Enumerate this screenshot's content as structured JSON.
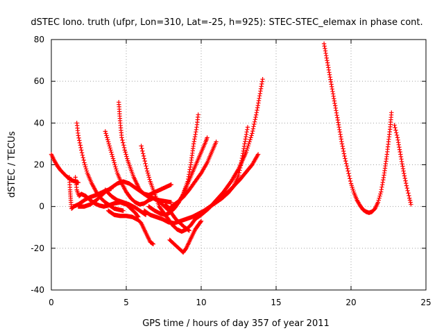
{
  "chart_data": {
    "type": "scatter",
    "title": "dSTEC Iono. truth (ufpr, Lon=310, Lat=-25, h=925): STEC-STEC_elemax in phase cont.",
    "xlabel": "GPS time / hours of day 357 of year 2011",
    "ylabel": "dSTEC  / TECUs",
    "xlim": [
      0,
      25
    ],
    "ylim": [
      -40,
      80
    ],
    "xticks": [
      0,
      5,
      10,
      15,
      20,
      25
    ],
    "yticks": [
      -40,
      -20,
      0,
      20,
      40,
      60,
      80
    ],
    "x_tick_labels": [
      "0",
      "5",
      "10",
      "15",
      "20",
      "25"
    ],
    "y_tick_labels": [
      "-40",
      "-20",
      "0",
      "20",
      "40",
      "60",
      "80"
    ],
    "grid": true,
    "legend": "none",
    "marker": "+",
    "color": "#ff0000",
    "series": [
      {
        "points": [
          [
            0.0,
            25
          ],
          [
            0.2,
            22
          ],
          [
            0.4,
            19.5
          ],
          [
            0.6,
            17.5
          ],
          [
            0.8,
            16
          ],
          [
            1.0,
            14.5
          ],
          [
            1.2,
            13.5
          ],
          [
            1.4,
            12.5
          ],
          [
            1.6,
            12
          ],
          [
            1.8,
            11.5
          ]
        ]
      },
      {
        "points": [
          [
            1.2,
            14
          ],
          [
            1.25,
            8
          ],
          [
            1.3,
            3
          ],
          [
            1.35,
            -1
          ],
          [
            1.5,
            0
          ],
          [
            1.8,
            1
          ],
          [
            2.0,
            2
          ],
          [
            2.3,
            3.5
          ],
          [
            2.6,
            4.5
          ],
          [
            3.0,
            5.5
          ],
          [
            3.3,
            6.5
          ],
          [
            3.6,
            7.5
          ],
          [
            4.0,
            8.5
          ]
        ]
      },
      {
        "points": [
          [
            1.6,
            14
          ],
          [
            1.7,
            8
          ],
          [
            1.85,
            5
          ],
          [
            2.0,
            6
          ],
          [
            2.3,
            5
          ],
          [
            2.6,
            3
          ],
          [
            2.9,
            1.5
          ],
          [
            3.2,
            0.5
          ],
          [
            3.5,
            0
          ],
          [
            3.8,
            0.5
          ],
          [
            4.2,
            1.5
          ],
          [
            4.6,
            2
          ],
          [
            5.0,
            1
          ],
          [
            5.3,
            -1
          ],
          [
            5.6,
            -3
          ],
          [
            5.8,
            -5
          ]
        ]
      },
      {
        "points": [
          [
            1.7,
            40
          ],
          [
            1.8,
            34
          ],
          [
            2.0,
            27
          ],
          [
            2.2,
            21
          ],
          [
            2.4,
            16
          ],
          [
            2.7,
            11
          ],
          [
            3.0,
            7
          ],
          [
            3.3,
            4
          ],
          [
            3.6,
            2
          ],
          [
            3.9,
            0.5
          ],
          [
            4.2,
            -1
          ],
          [
            4.5,
            -1.5
          ],
          [
            4.8,
            -2
          ]
        ]
      },
      {
        "points": [
          [
            1.8,
            0
          ],
          [
            2.2,
            0
          ],
          [
            2.6,
            1
          ],
          [
            3.0,
            3
          ],
          [
            3.3,
            5
          ],
          [
            3.6,
            7
          ],
          [
            4.0,
            9
          ],
          [
            4.4,
            11
          ],
          [
            4.8,
            12
          ],
          [
            5.2,
            11
          ],
          [
            5.6,
            9
          ],
          [
            6.0,
            7
          ],
          [
            6.4,
            5
          ],
          [
            6.8,
            4
          ],
          [
            7.2,
            3
          ],
          [
            7.6,
            2.5
          ],
          [
            8.0,
            2
          ]
        ]
      },
      {
        "points": [
          [
            3.6,
            8
          ],
          [
            4.0,
            5
          ],
          [
            4.4,
            3
          ],
          [
            4.8,
            2
          ],
          [
            5.2,
            1
          ],
          [
            5.6,
            -0.5
          ],
          [
            6.0,
            -2.5
          ],
          [
            6.3,
            -4
          ]
        ]
      },
      {
        "points": [
          [
            3.6,
            36
          ],
          [
            3.8,
            31
          ],
          [
            4.0,
            26
          ],
          [
            4.2,
            21
          ],
          [
            4.4,
            16
          ],
          [
            4.7,
            11
          ],
          [
            5.0,
            7
          ],
          [
            5.3,
            4
          ],
          [
            5.6,
            2
          ],
          [
            5.9,
            1
          ],
          [
            6.2,
            1.5
          ],
          [
            6.5,
            3
          ],
          [
            6.8,
            4
          ],
          [
            7.1,
            3
          ],
          [
            7.4,
            1
          ],
          [
            7.7,
            -1
          ],
          [
            8.0,
            -3
          ],
          [
            8.3,
            -6
          ],
          [
            8.6,
            -8
          ],
          [
            8.9,
            -10
          ],
          [
            9.2,
            -11.5
          ]
        ]
      },
      {
        "points": [
          [
            4.5,
            50
          ],
          [
            4.6,
            40
          ],
          [
            4.7,
            33
          ],
          [
            4.9,
            27
          ],
          [
            5.1,
            22
          ],
          [
            5.3,
            18
          ],
          [
            5.5,
            14
          ],
          [
            5.7,
            11
          ],
          [
            5.9,
            8
          ],
          [
            6.2,
            6
          ],
          [
            6.5,
            5.5
          ],
          [
            6.8,
            6.5
          ],
          [
            7.1,
            7.5
          ],
          [
            7.4,
            8.5
          ],
          [
            7.7,
            9.5
          ],
          [
            8.0,
            10.5
          ]
        ]
      },
      {
        "points": [
          [
            3.8,
            -2
          ],
          [
            4.2,
            -4
          ],
          [
            4.6,
            -4.5
          ],
          [
            5.0,
            -4.5
          ],
          [
            5.4,
            -5
          ],
          [
            5.8,
            -6.5
          ],
          [
            6.0,
            -8
          ],
          [
            6.2,
            -11
          ],
          [
            6.4,
            -14
          ],
          [
            6.6,
            -17
          ],
          [
            6.8,
            -18
          ]
        ]
      },
      {
        "points": [
          [
            6.0,
            29
          ],
          [
            6.2,
            23
          ],
          [
            6.4,
            17
          ],
          [
            6.6,
            12
          ],
          [
            6.8,
            8
          ],
          [
            7.0,
            4
          ],
          [
            7.2,
            0
          ],
          [
            7.5,
            -3
          ],
          [
            7.8,
            -6
          ],
          [
            8.1,
            -9
          ],
          [
            8.4,
            -11
          ],
          [
            8.7,
            -12
          ],
          [
            9.0,
            -11
          ],
          [
            9.3,
            -9
          ],
          [
            9.6,
            -6
          ],
          [
            9.8,
            -4
          ]
        ]
      },
      {
        "points": [
          [
            7.9,
            -16
          ],
          [
            8.2,
            -18
          ],
          [
            8.5,
            -20
          ],
          [
            8.8,
            -22
          ],
          [
            9.0,
            -20
          ],
          [
            9.2,
            -17
          ],
          [
            9.4,
            -14
          ],
          [
            9.6,
            -11
          ],
          [
            9.8,
            -9
          ],
          [
            10.0,
            -7
          ]
        ]
      },
      {
        "points": [
          [
            6.2,
            -2
          ],
          [
            6.6,
            -4
          ],
          [
            7.0,
            -5
          ],
          [
            7.4,
            -6
          ],
          [
            7.8,
            -7.5
          ],
          [
            8.2,
            -8
          ],
          [
            8.6,
            -7
          ],
          [
            9.0,
            -6
          ],
          [
            9.4,
            -5
          ],
          [
            9.8,
            -3.5
          ],
          [
            10.2,
            -2
          ],
          [
            10.6,
            0
          ],
          [
            11.0,
            2
          ],
          [
            11.4,
            4
          ],
          [
            11.8,
            7
          ],
          [
            12.2,
            10
          ],
          [
            12.6,
            13
          ],
          [
            13.0,
            16.5
          ],
          [
            13.4,
            20
          ],
          [
            13.8,
            25
          ]
        ]
      },
      {
        "points": [
          [
            6.5,
            0
          ],
          [
            6.9,
            -2
          ],
          [
            7.3,
            -3.5
          ],
          [
            7.6,
            -4
          ],
          [
            7.9,
            -3
          ],
          [
            8.2,
            -1
          ],
          [
            8.5,
            2
          ],
          [
            8.8,
            6
          ],
          [
            9.1,
            12
          ],
          [
            9.3,
            20
          ],
          [
            9.5,
            30
          ],
          [
            9.7,
            38
          ],
          [
            9.8,
            44
          ]
        ]
      },
      {
        "points": [
          [
            7.6,
            1
          ],
          [
            7.9,
            -1
          ],
          [
            8.2,
            -1
          ],
          [
            8.5,
            2
          ],
          [
            8.8,
            6
          ],
          [
            9.1,
            11
          ],
          [
            9.4,
            16
          ],
          [
            9.7,
            21
          ],
          [
            10.0,
            26
          ],
          [
            10.3,
            31
          ],
          [
            10.4,
            33
          ]
        ]
      },
      {
        "points": [
          [
            8.0,
            0
          ],
          [
            8.4,
            2
          ],
          [
            8.8,
            4.5
          ],
          [
            9.2,
            8
          ],
          [
            9.6,
            12
          ],
          [
            10.0,
            16
          ],
          [
            10.4,
            21
          ],
          [
            10.7,
            26
          ],
          [
            11.0,
            31
          ]
        ]
      },
      {
        "points": [
          [
            9.8,
            -4
          ],
          [
            10.2,
            -2
          ],
          [
            10.6,
            0
          ],
          [
            11.0,
            2
          ],
          [
            11.4,
            4
          ],
          [
            11.8,
            6.5
          ],
          [
            12.2,
            10
          ],
          [
            12.5,
            15
          ],
          [
            12.7,
            22
          ],
          [
            12.9,
            30
          ],
          [
            13.1,
            38
          ]
        ]
      },
      {
        "points": [
          [
            9.6,
            -6
          ],
          [
            10.0,
            -4
          ],
          [
            10.5,
            -1
          ],
          [
            11.0,
            3
          ],
          [
            11.5,
            7
          ],
          [
            12.0,
            12
          ],
          [
            12.5,
            18
          ],
          [
            13.0,
            26
          ],
          [
            13.4,
            35
          ],
          [
            13.7,
            45
          ],
          [
            13.9,
            53
          ],
          [
            14.1,
            61
          ]
        ]
      },
      {
        "points": [
          [
            18.2,
            78
          ],
          [
            18.4,
            70
          ],
          [
            18.6,
            62
          ],
          [
            18.8,
            54
          ],
          [
            19.0,
            46
          ],
          [
            19.2,
            38
          ],
          [
            19.4,
            30
          ],
          [
            19.6,
            23
          ],
          [
            19.8,
            17
          ],
          [
            20.0,
            11
          ],
          [
            20.2,
            6.5
          ],
          [
            20.4,
            3
          ],
          [
            20.6,
            0.5
          ],
          [
            20.8,
            -1.5
          ],
          [
            21.0,
            -2.5
          ],
          [
            21.2,
            -3
          ],
          [
            21.4,
            -2.5
          ],
          [
            21.6,
            -1
          ],
          [
            21.8,
            2
          ],
          [
            22.0,
            7
          ],
          [
            22.2,
            15
          ],
          [
            22.4,
            25
          ],
          [
            22.6,
            37
          ],
          [
            22.7,
            45
          ]
        ]
      },
      {
        "points": [
          [
            22.9,
            39
          ],
          [
            23.1,
            33
          ],
          [
            23.3,
            25
          ],
          [
            23.5,
            17
          ],
          [
            23.7,
            10
          ],
          [
            23.9,
            4
          ],
          [
            24.0,
            1
          ]
        ]
      }
    ]
  }
}
